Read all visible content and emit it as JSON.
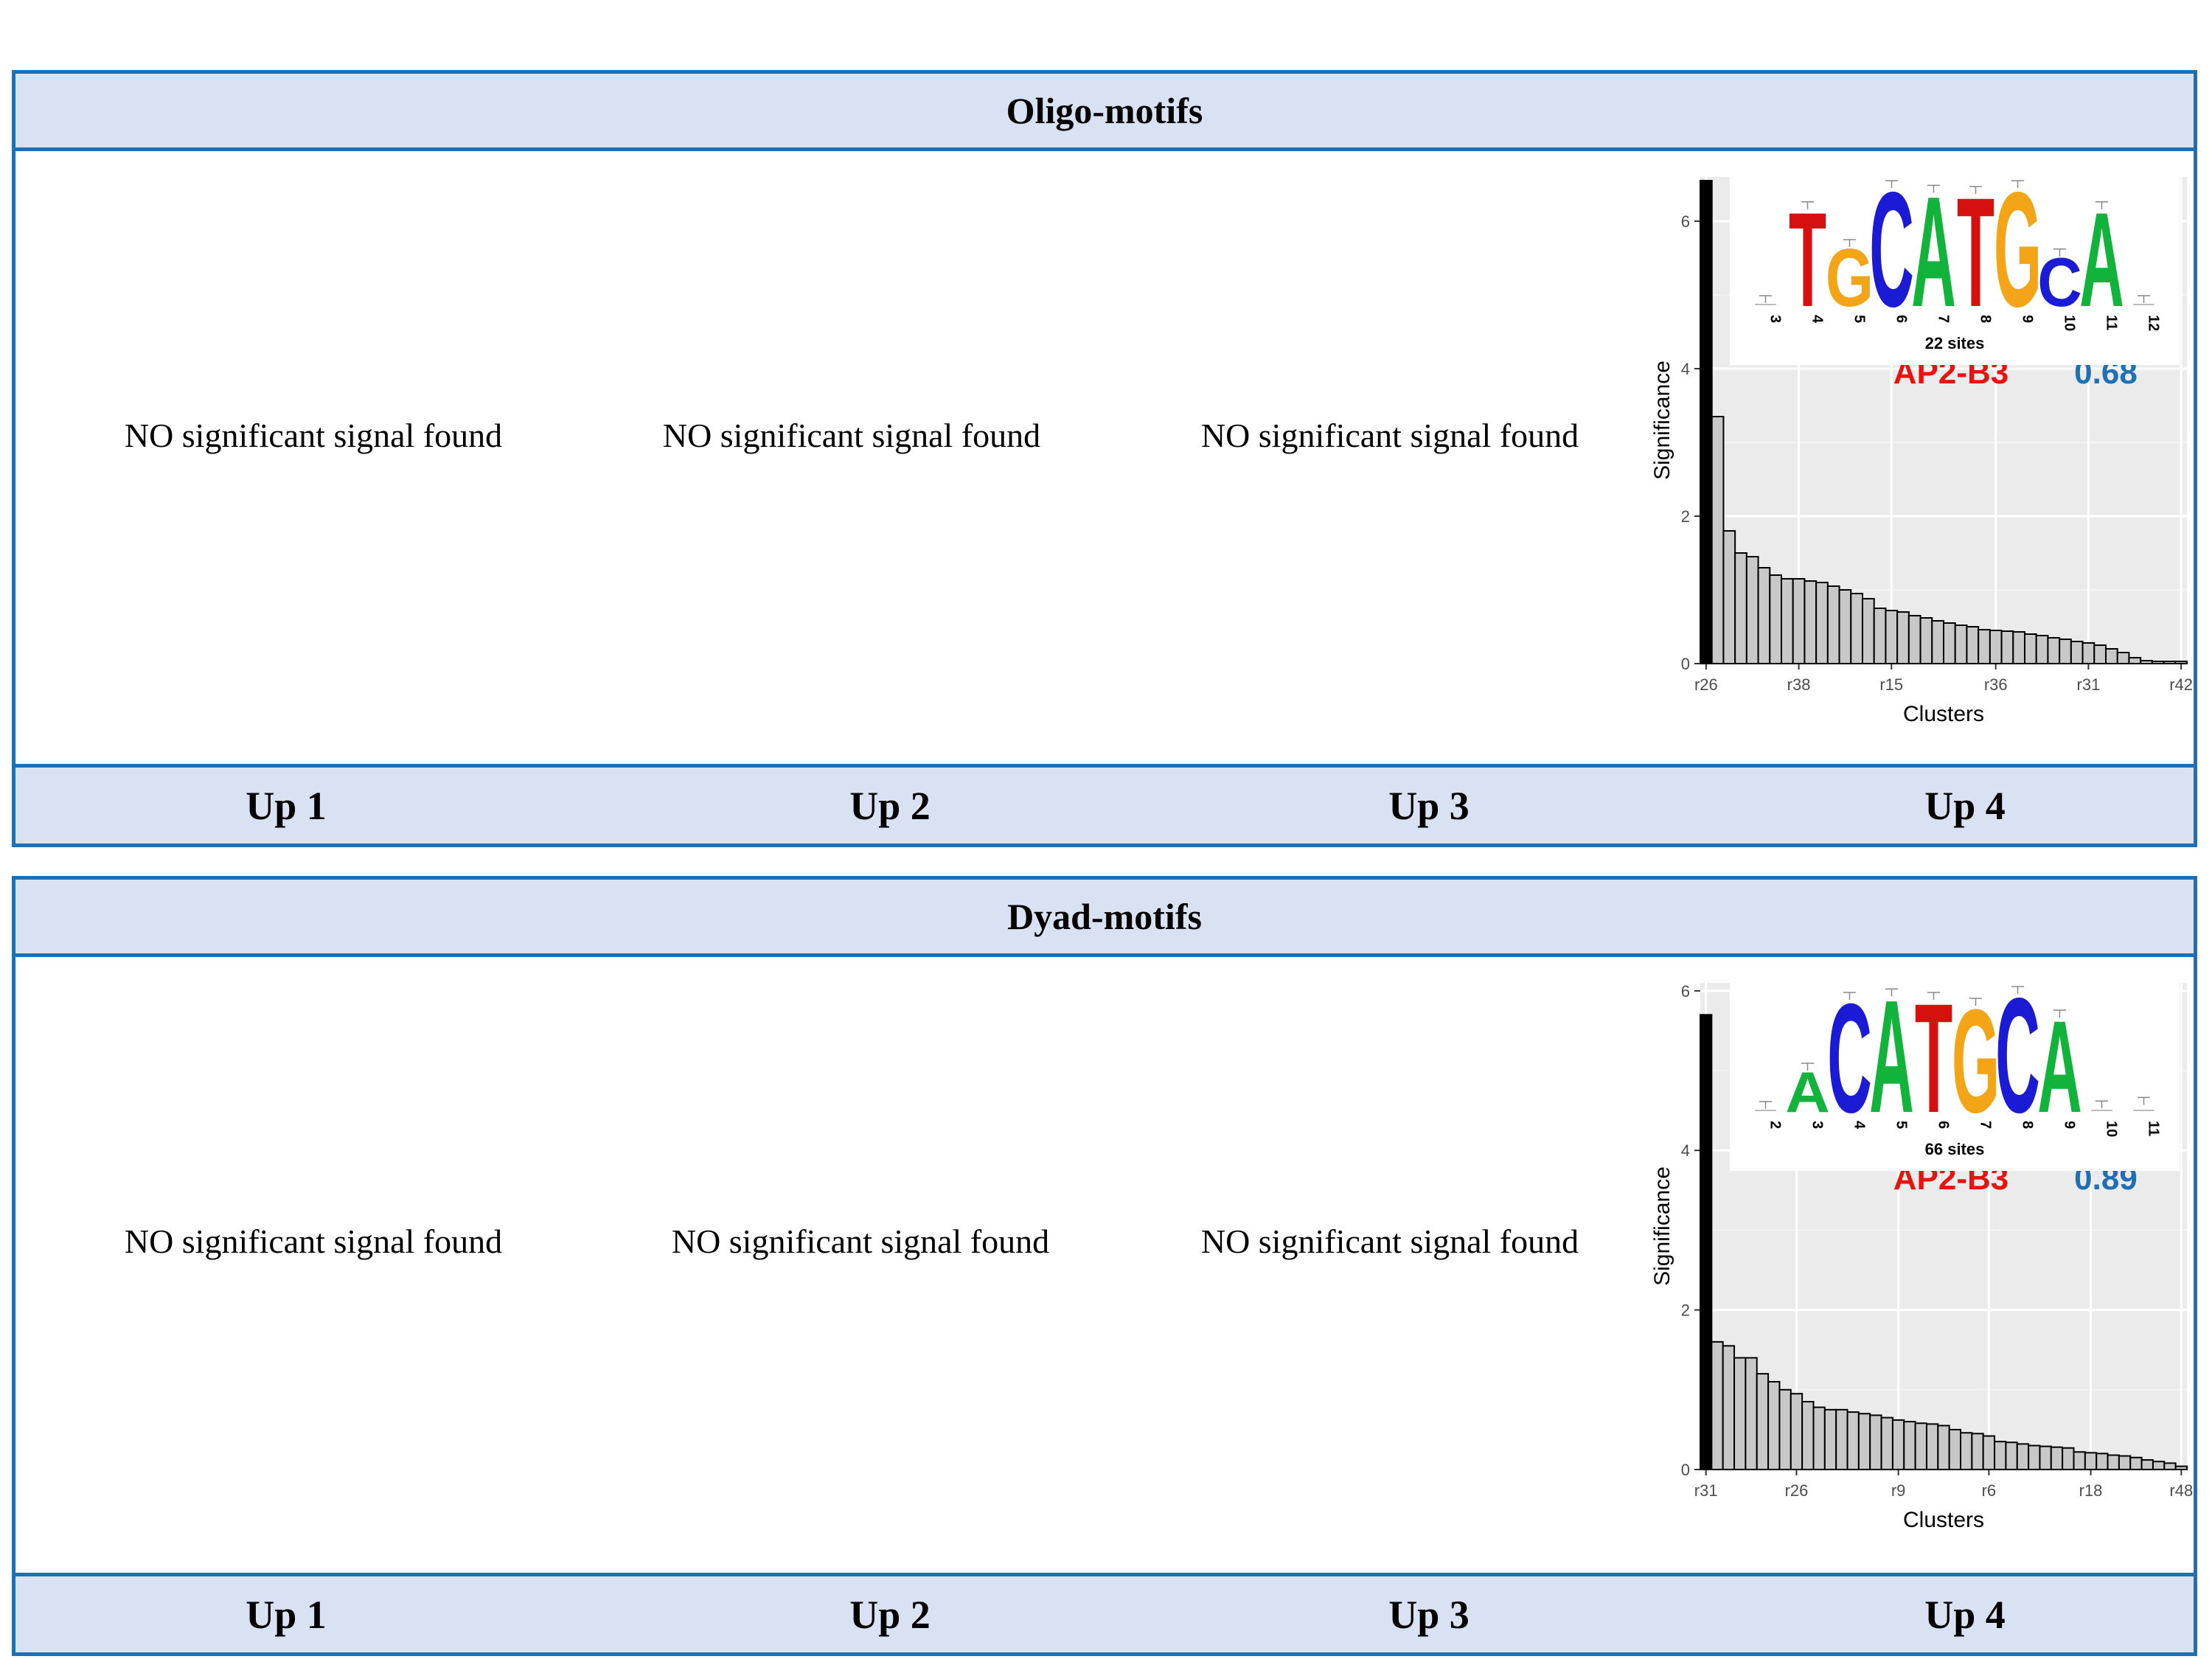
{
  "panels": [
    {
      "title": "Oligo-motifs",
      "columns": [
        "Up 1",
        "Up 2",
        "Up 3",
        "Up 4"
      ],
      "no_signal_text": "NO significant signal found",
      "chart_data": {
        "type": "bar",
        "xlabel": "Clusters",
        "ylabel": "Significance",
        "ylim": [
          0,
          6.6
        ],
        "yticks": [
          0,
          2,
          4,
          6
        ],
        "xtick_labels": [
          "r26",
          "r38",
          "r15",
          "r36",
          "r31",
          "r42"
        ],
        "values": [
          6.55,
          3.35,
          1.8,
          1.5,
          1.45,
          1.3,
          1.2,
          1.15,
          1.15,
          1.12,
          1.1,
          1.05,
          1.0,
          0.95,
          0.88,
          0.75,
          0.72,
          0.7,
          0.65,
          0.62,
          0.58,
          0.55,
          0.52,
          0.5,
          0.46,
          0.45,
          0.44,
          0.43,
          0.4,
          0.38,
          0.35,
          0.33,
          0.3,
          0.28,
          0.25,
          0.2,
          0.15,
          0.08,
          0.04,
          0.03,
          0.03,
          0.03
        ],
        "annotation_name": "AP2-B3",
        "annotation_score": "0.68",
        "annotation_name_color": "#e8130f",
        "annotation_score_color": "#1f6fb5",
        "logo": {
          "sites_label": "22 sites",
          "positions": [
            "3",
            "4",
            "5",
            "6",
            "7",
            "8",
            "9",
            "10",
            "11",
            "12"
          ],
          "letters": [
            {
              "char": "",
              "height": 0.02
            },
            {
              "char": "T",
              "height": 0.82
            },
            {
              "char": "G",
              "height": 0.5
            },
            {
              "char": "C",
              "height": 1.0
            },
            {
              "char": "A",
              "height": 0.96
            },
            {
              "char": "T",
              "height": 0.95
            },
            {
              "char": "G",
              "height": 1.0
            },
            {
              "char": "C",
              "height": 0.42
            },
            {
              "char": "A",
              "height": 0.82
            },
            {
              "char": "",
              "height": 0.02
            }
          ]
        }
      }
    },
    {
      "title": "Dyad-motifs",
      "columns": [
        "Up 1",
        "Up 2",
        "Up 3",
        "Up 4"
      ],
      "no_signal_text": "NO significant signal found",
      "chart_data": {
        "type": "bar",
        "xlabel": "Clusters",
        "ylabel": "Significance",
        "ylim": [
          0,
          6.1
        ],
        "yticks": [
          0,
          2,
          4,
          6
        ],
        "xtick_labels": [
          "r31",
          "r26",
          "r9",
          "r6",
          "r18",
          "r48"
        ],
        "values": [
          5.7,
          1.6,
          1.55,
          1.4,
          1.4,
          1.2,
          1.1,
          1.0,
          0.95,
          0.85,
          0.78,
          0.75,
          0.75,
          0.72,
          0.7,
          0.68,
          0.65,
          0.62,
          0.6,
          0.58,
          0.57,
          0.55,
          0.5,
          0.46,
          0.45,
          0.42,
          0.35,
          0.34,
          0.32,
          0.3,
          0.29,
          0.28,
          0.27,
          0.22,
          0.21,
          0.2,
          0.18,
          0.17,
          0.15,
          0.12,
          0.1,
          0.08,
          0.04
        ],
        "annotation_name": "AP2-B3",
        "annotation_score": "0.89",
        "annotation_name_color": "#e8130f",
        "annotation_score_color": "#1f6fb5",
        "logo": {
          "sites_label": "66 sites",
          "positions": [
            "2",
            "3",
            "4",
            "5",
            "6",
            "7",
            "8",
            "9",
            "10",
            "11"
          ],
          "letters": [
            {
              "char": "",
              "height": 0.02
            },
            {
              "char": "A",
              "height": 0.35
            },
            {
              "char": "C",
              "height": 0.95
            },
            {
              "char": "A",
              "height": 0.98
            },
            {
              "char": "T",
              "height": 0.95
            },
            {
              "char": "G",
              "height": 0.9
            },
            {
              "char": "C",
              "height": 1.0
            },
            {
              "char": "A",
              "height": 0.8
            },
            {
              "char": "",
              "height": 0.03
            },
            {
              "char": "",
              "height": 0.06
            }
          ]
        }
      }
    }
  ],
  "letter_colors": {
    "A": "#12b33a",
    "C": "#1b1bd6",
    "G": "#f3a417",
    "T": "#d60f0f"
  }
}
